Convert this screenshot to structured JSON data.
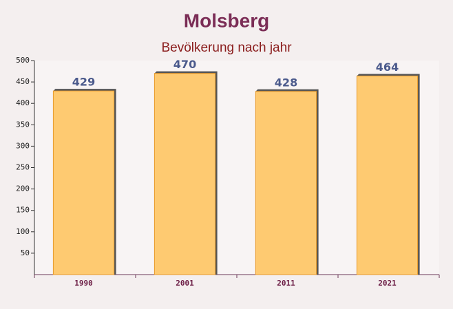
{
  "chart_data": {
    "type": "bar",
    "title": "Molsberg",
    "subtitle": "Bevölkerung nach jahr",
    "categories": [
      "1990",
      "2001",
      "2011",
      "2021"
    ],
    "values": [
      429,
      470,
      428,
      464
    ],
    "color": "#ffc259",
    "ylim": [
      0,
      500
    ],
    "yticks": [
      50,
      100,
      150,
      200,
      250,
      300,
      350,
      400,
      450,
      500
    ],
    "grid": false
  }
}
